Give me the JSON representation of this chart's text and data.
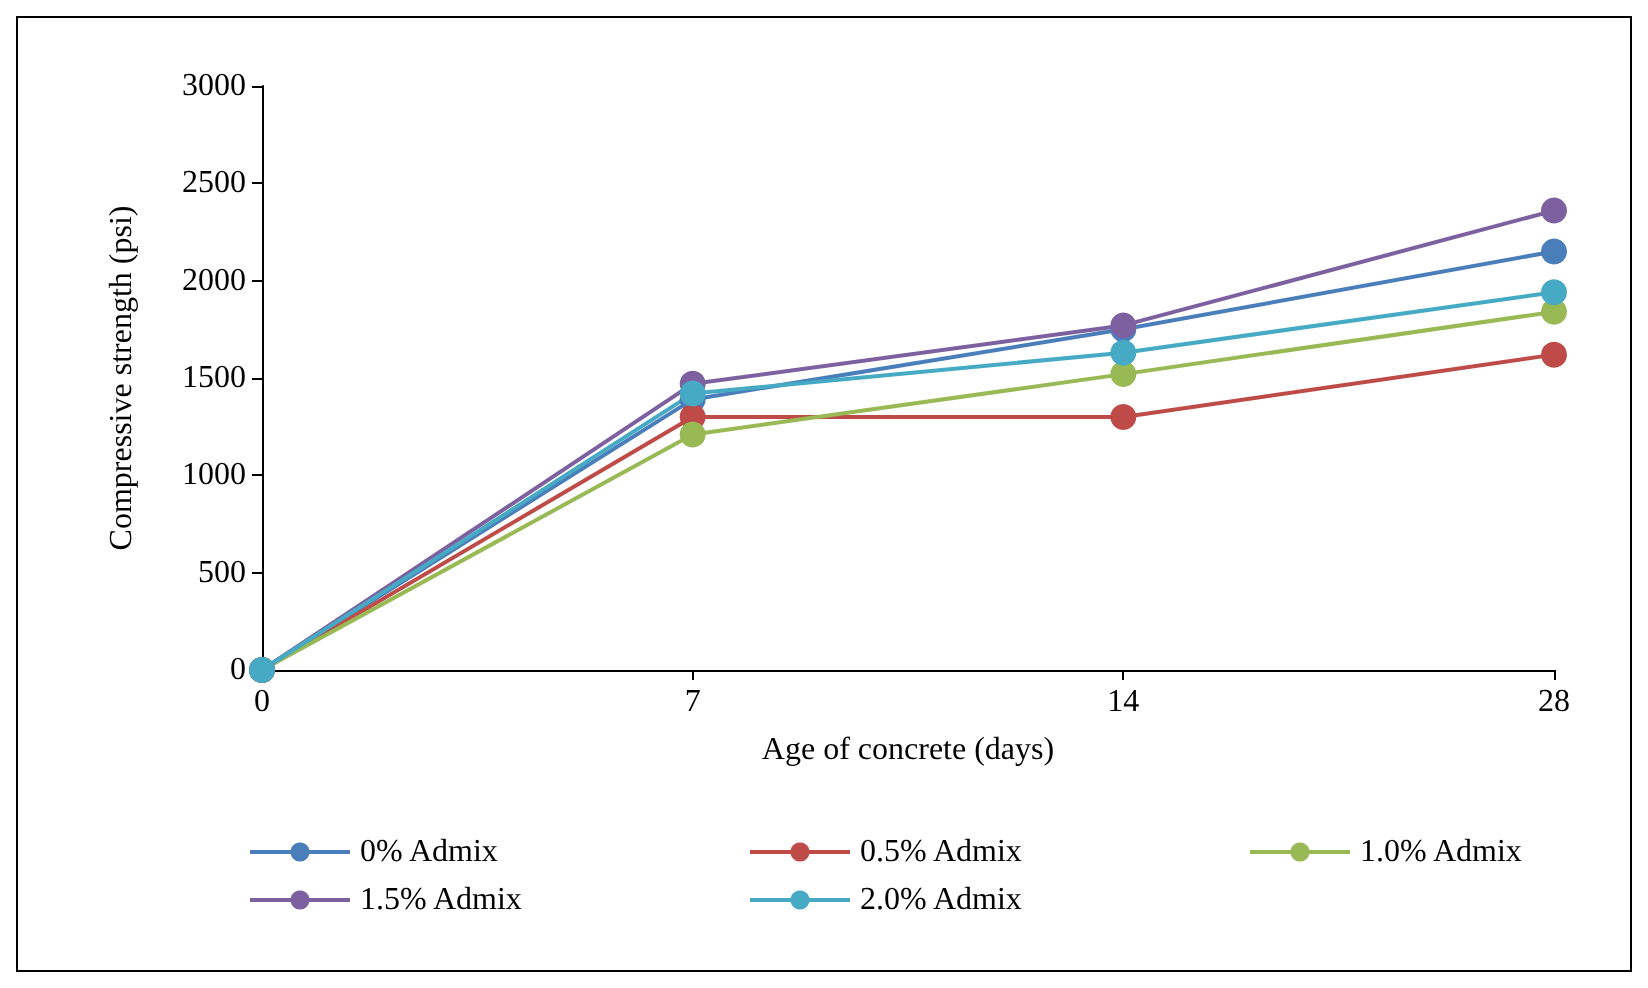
{
  "chart_data": {
    "type": "line",
    "xlabel": "Age of concrete (days)",
    "ylabel": "Compressive strength (psi)",
    "categories": [
      "0",
      "7",
      "14",
      "28"
    ],
    "ylim": [
      0,
      3000
    ],
    "yticks": [
      0,
      500,
      1000,
      1500,
      2000,
      2500,
      3000
    ],
    "grid": false,
    "legend": "bottom",
    "marker": "circle",
    "series": [
      {
        "name": "0% Admix",
        "color": "#4a7ebb",
        "values": [
          0,
          1390,
          1750,
          2150
        ]
      },
      {
        "name": "0.5% Admix",
        "color": "#be4b48",
        "values": [
          0,
          1300,
          1300,
          1620
        ]
      },
      {
        "name": "1.0% Admix",
        "color": "#98b954",
        "values": [
          0,
          1210,
          1520,
          1840
        ]
      },
      {
        "name": "1.5% Admix",
        "color": "#7d60a0",
        "values": [
          0,
          1470,
          1770,
          2360
        ]
      },
      {
        "name": "2.0% Admix",
        "color": "#46aac5",
        "values": [
          0,
          1420,
          1630,
          1940
        ]
      }
    ]
  }
}
